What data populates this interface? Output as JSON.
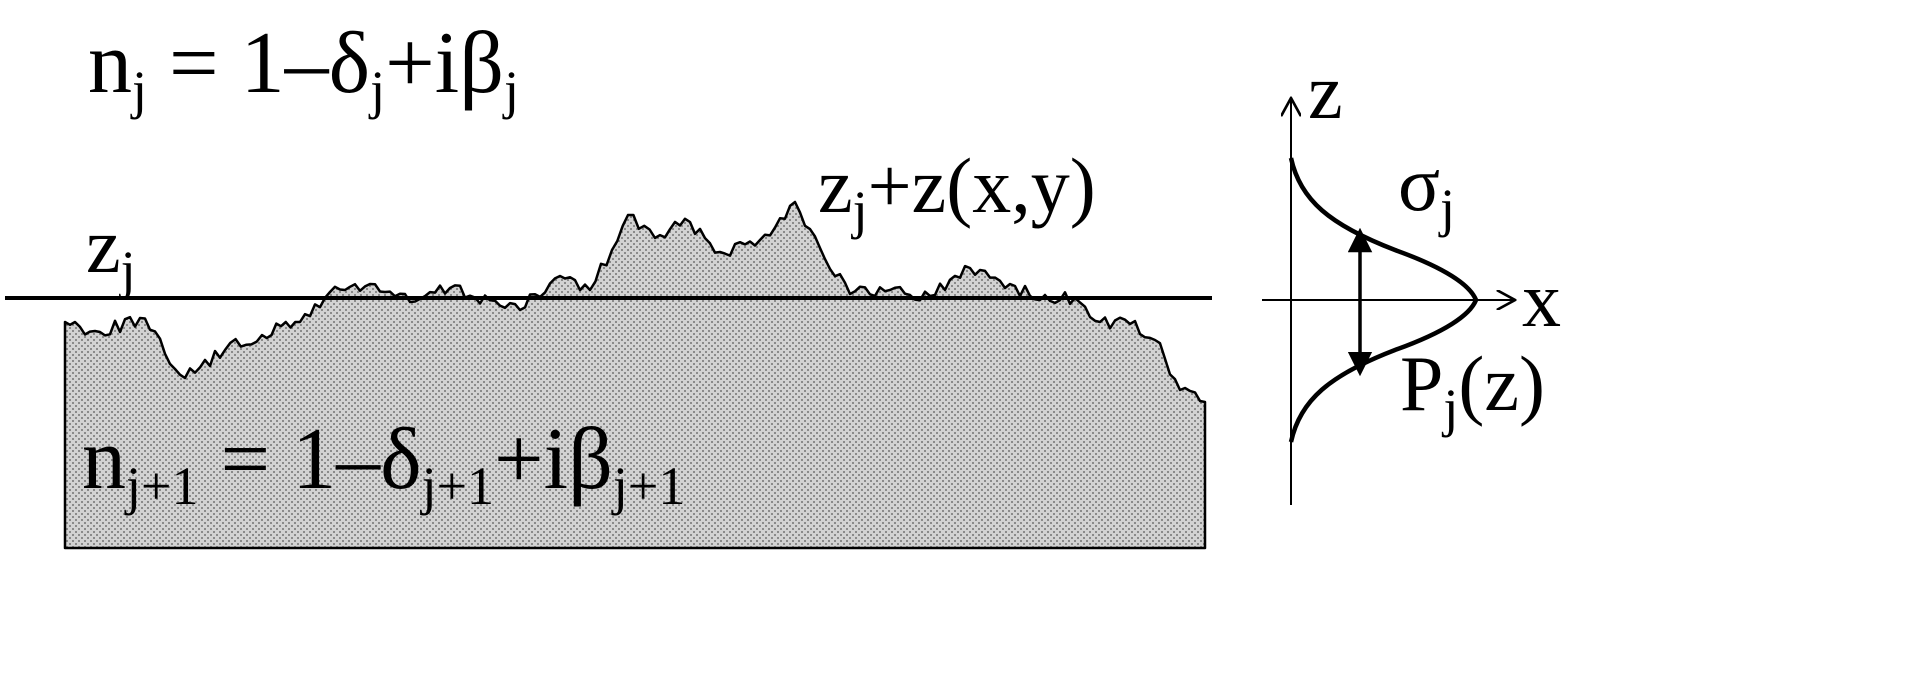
{
  "upper_medium": {
    "n": "n",
    "n_sub": "j",
    "rhs_1": " = 1–δ",
    "rhs_1_sub": "j",
    "rhs_2": "+iβ",
    "rhs_2_sub": "j"
  },
  "lower_medium": {
    "n": "n",
    "n_sub": "j+1",
    "rhs_1": " = 1–δ",
    "rhs_1_sub": "j+1",
    "rhs_2": "+iβ",
    "rhs_2_sub": "j+1"
  },
  "mean_interface": {
    "base": "z",
    "sub": "j"
  },
  "rough_interface": {
    "base": "z",
    "sub": "j",
    "rest": "+z(x,y)"
  },
  "distribution": {
    "z_axis": "z",
    "x_axis": "x",
    "sigma": "σ",
    "sigma_sub": "j",
    "p": "P",
    "p_sub": "j",
    "p_rest": "(z)"
  },
  "colors": {
    "ink": "#000000",
    "substrate_fill": "#c9c9c9",
    "substrate_dots": "#8a8a8a",
    "background": "#ffffff"
  }
}
